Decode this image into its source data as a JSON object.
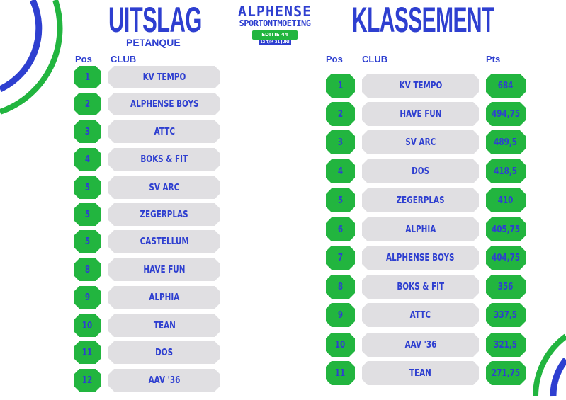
{
  "header": {
    "left_title": "UITSLAG",
    "left_subtitle": "PETANQUE",
    "logo_line1": "ALPHENSE",
    "logo_line2": "SPORTONTMOETING",
    "logo_edition": "EDITIE 44",
    "logo_dates": "12 T/M 21 JUNI",
    "right_title": "KLASSEMENT"
  },
  "colors": {
    "blue": "#2e3fd0",
    "green": "#22b53f",
    "grey": "#e0dfe2"
  },
  "uitslag": {
    "headers": {
      "pos": "Pos",
      "club": "CLUB"
    },
    "rows": [
      {
        "pos": "1",
        "club": "KV TEMPO"
      },
      {
        "pos": "2",
        "club": "ALPHENSE BOYS"
      },
      {
        "pos": "3",
        "club": "ATTC"
      },
      {
        "pos": "4",
        "club": "BOKS & FIT"
      },
      {
        "pos": "5",
        "club": "SV ARC"
      },
      {
        "pos": "5",
        "club": "ZEGERPLAS"
      },
      {
        "pos": "5",
        "club": "CASTELLUM"
      },
      {
        "pos": "8",
        "club": "HAVE FUN"
      },
      {
        "pos": "9",
        "club": "ALPHIA"
      },
      {
        "pos": "10",
        "club": "TEAN"
      },
      {
        "pos": "11",
        "club": "DOS"
      },
      {
        "pos": "12",
        "club": "AAV '36"
      }
    ]
  },
  "klassement": {
    "headers": {
      "pos": "Pos",
      "club": "CLUB",
      "pts": "Pts"
    },
    "rows": [
      {
        "pos": "1",
        "club": "KV TEMPO",
        "pts": "684"
      },
      {
        "pos": "2",
        "club": "HAVE FUN",
        "pts": "494,75"
      },
      {
        "pos": "3",
        "club": "SV ARC",
        "pts": "489,5"
      },
      {
        "pos": "4",
        "club": "DOS",
        "pts": "418,5"
      },
      {
        "pos": "5",
        "club": "ZEGERPLAS",
        "pts": "410"
      },
      {
        "pos": "6",
        "club": "ALPHIA",
        "pts": "405,75"
      },
      {
        "pos": "7",
        "club": "ALPHENSE BOYS",
        "pts": "404,75"
      },
      {
        "pos": "8",
        "club": "BOKS & FIT",
        "pts": "356"
      },
      {
        "pos": "9",
        "club": "ATTC",
        "pts": "337,5"
      },
      {
        "pos": "10",
        "club": "AAV '36",
        "pts": "321,5"
      },
      {
        "pos": "11",
        "club": "TEAN",
        "pts": "271,75"
      }
    ]
  }
}
